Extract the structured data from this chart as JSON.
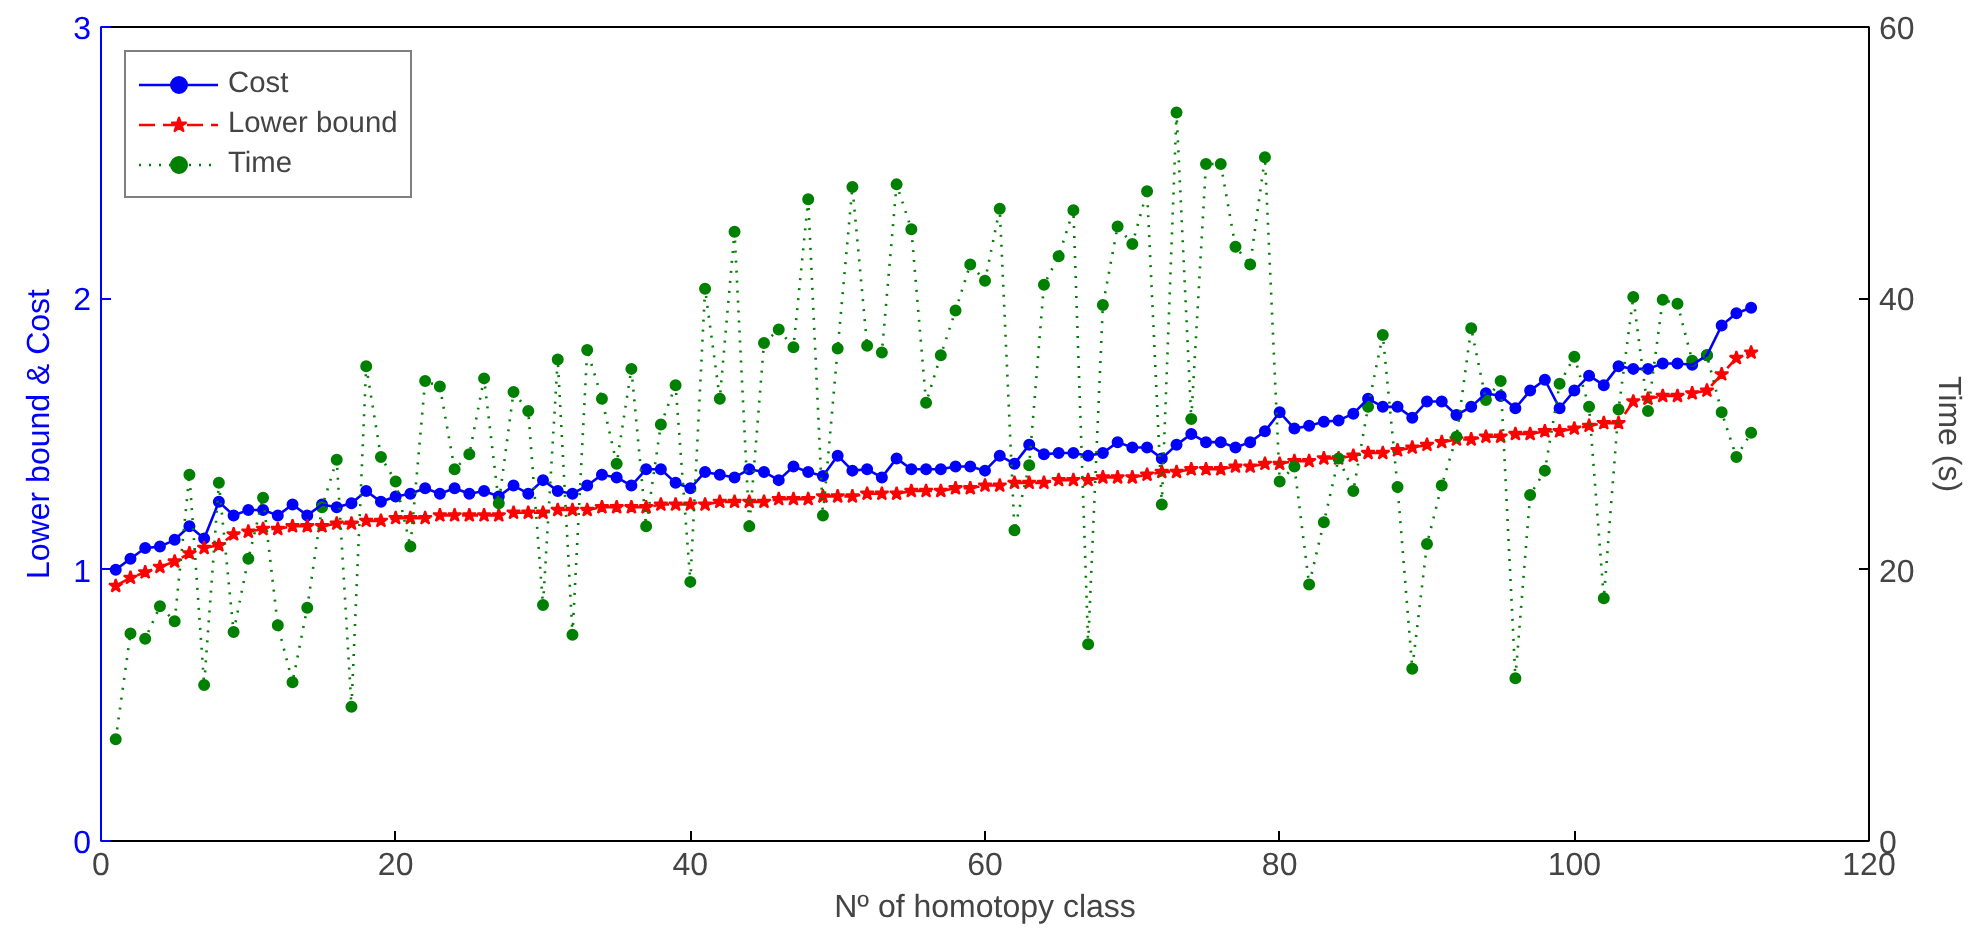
{
  "chart_data": {
    "type": "line",
    "xlabel": "Nº of homotopy class",
    "ylabel": "Lower bound & Cost",
    "y2label": "Time (s)",
    "x": [
      1,
      2,
      3,
      4,
      5,
      6,
      7,
      8,
      9,
      10,
      11,
      12,
      13,
      14,
      15,
      16,
      17,
      18,
      19,
      20,
      21,
      22,
      23,
      24,
      25,
      26,
      27,
      28,
      29,
      30,
      31,
      32,
      33,
      34,
      35,
      36,
      37,
      38,
      39,
      40,
      41,
      42,
      43,
      44,
      45,
      46,
      47,
      48,
      49,
      50,
      51,
      52,
      53,
      54,
      55,
      56,
      57,
      58,
      59,
      60,
      61,
      62,
      63,
      64,
      65,
      66,
      67,
      68,
      69,
      70,
      71,
      72,
      73,
      74,
      75,
      76,
      77,
      78,
      79,
      80,
      81,
      82,
      83,
      84,
      85,
      86,
      87,
      88,
      89,
      90,
      91,
      92,
      93,
      94,
      95,
      96,
      97,
      98,
      99,
      100,
      101,
      102,
      103,
      104,
      105,
      106,
      107,
      108,
      109,
      110,
      111,
      112
    ],
    "series": [
      {
        "name": "Cost",
        "color": "#0000ff",
        "marker": "circle",
        "line_style": "solid",
        "values": [
          1.0,
          1.04,
          1.08,
          1.085,
          1.11,
          1.16,
          1.115,
          1.25,
          1.2,
          1.22,
          1.22,
          1.2,
          1.24,
          1.2,
          1.24,
          1.23,
          1.245,
          1.29,
          1.25,
          1.27,
          1.28,
          1.3,
          1.28,
          1.3,
          1.28,
          1.29,
          1.27,
          1.31,
          1.28,
          1.33,
          1.29,
          1.28,
          1.31,
          1.35,
          1.34,
          1.31,
          1.37,
          1.37,
          1.32,
          1.3,
          1.36,
          1.35,
          1.34,
          1.37,
          1.36,
          1.33,
          1.38,
          1.36,
          1.345,
          1.42,
          1.365,
          1.37,
          1.34,
          1.41,
          1.37,
          1.37,
          1.37,
          1.38,
          1.38,
          1.365,
          1.42,
          1.39,
          1.46,
          1.425,
          1.43,
          1.43,
          1.42,
          1.43,
          1.47,
          1.45,
          1.45,
          1.41,
          1.46,
          1.5,
          1.47,
          1.47,
          1.45,
          1.47,
          1.51,
          1.58,
          1.52,
          1.53,
          1.545,
          1.55,
          1.575,
          1.63,
          1.6,
          1.6,
          1.56,
          1.62,
          1.62,
          1.57,
          1.6,
          1.65,
          1.64,
          1.595,
          1.66,
          1.7,
          1.595,
          1.66,
          1.715,
          1.68,
          1.75,
          1.74,
          1.74,
          1.76,
          1.76,
          1.755,
          1.79,
          1.9,
          1.945,
          1.965
        ]
      },
      {
        "name": "Lower bound",
        "color": "#ff0000",
        "marker": "star",
        "line_style": "dashed",
        "values": [
          0.94,
          0.97,
          0.99,
          1.01,
          1.03,
          1.06,
          1.08,
          1.09,
          1.13,
          1.14,
          1.15,
          1.15,
          1.16,
          1.16,
          1.16,
          1.17,
          1.17,
          1.18,
          1.18,
          1.19,
          1.19,
          1.19,
          1.2,
          1.2,
          1.2,
          1.2,
          1.2,
          1.21,
          1.21,
          1.21,
          1.22,
          1.22,
          1.22,
          1.23,
          1.23,
          1.23,
          1.23,
          1.24,
          1.24,
          1.24,
          1.24,
          1.25,
          1.25,
          1.25,
          1.25,
          1.26,
          1.26,
          1.26,
          1.27,
          1.27,
          1.27,
          1.28,
          1.28,
          1.28,
          1.29,
          1.29,
          1.29,
          1.3,
          1.3,
          1.31,
          1.31,
          1.32,
          1.32,
          1.32,
          1.33,
          1.33,
          1.33,
          1.34,
          1.34,
          1.34,
          1.35,
          1.36,
          1.36,
          1.37,
          1.37,
          1.37,
          1.38,
          1.38,
          1.39,
          1.39,
          1.4,
          1.4,
          1.41,
          1.41,
          1.42,
          1.43,
          1.43,
          1.44,
          1.45,
          1.46,
          1.47,
          1.48,
          1.48,
          1.49,
          1.49,
          1.5,
          1.5,
          1.51,
          1.51,
          1.52,
          1.53,
          1.54,
          1.54,
          1.62,
          1.63,
          1.64,
          1.64,
          1.65,
          1.66,
          1.72,
          1.78,
          1.8
        ]
      },
      {
        "name": "Time",
        "color": "#008000",
        "marker": "circle",
        "line_style": "dotted",
        "axis": "y2",
        "values": [
          7.5,
          15.3,
          14.9,
          17.3,
          16.2,
          27,
          11.5,
          26.4,
          15.4,
          20.8,
          25.3,
          15.9,
          11.7,
          17.2,
          24.6,
          28.1,
          9.9,
          35,
          28.3,
          26.5,
          21.7,
          33.9,
          33.5,
          27.4,
          28.5,
          34.1,
          24.9,
          33.1,
          31.7,
          17.4,
          35.5,
          15.2,
          36.2,
          32.6,
          27.8,
          34.8,
          23.2,
          30.7,
          33.6,
          19.1,
          40.7,
          32.6,
          44.9,
          23.2,
          36.7,
          37.7,
          36.4,
          47.3,
          24,
          36.3,
          48.2,
          36.5,
          36,
          48.4,
          45.1,
          32.3,
          35.8,
          39.1,
          42.5,
          41.3,
          46.6,
          22.9,
          27.7,
          41,
          43.1,
          46.5,
          14.5,
          39.5,
          45.3,
          44,
          47.9,
          24.8,
          53.7,
          31.1,
          49.9,
          49.9,
          43.8,
          42.5,
          50.4,
          26.5,
          27.6,
          18.9,
          23.5,
          28.2,
          25.8,
          32,
          37.3,
          26.1,
          12.7,
          21.9,
          26.2,
          29.8,
          37.8,
          32.5,
          33.9,
          12,
          25.5,
          27.3,
          33.7,
          35.7,
          32,
          17.9,
          31.8,
          40.1,
          31.7,
          39.9,
          39.6,
          35.4,
          35.8,
          31.6,
          28.3,
          30.1
        ]
      }
    ],
    "xlim": [
      0,
      120
    ],
    "xticks": [
      0,
      20,
      40,
      60,
      80,
      100,
      120
    ],
    "ylim": [
      0,
      3
    ],
    "yticks": [
      0,
      1,
      2,
      3
    ],
    "y2lim": [
      0,
      60
    ],
    "y2ticks": [
      0,
      20,
      40,
      60
    ],
    "grid": false,
    "legend": "top left"
  }
}
